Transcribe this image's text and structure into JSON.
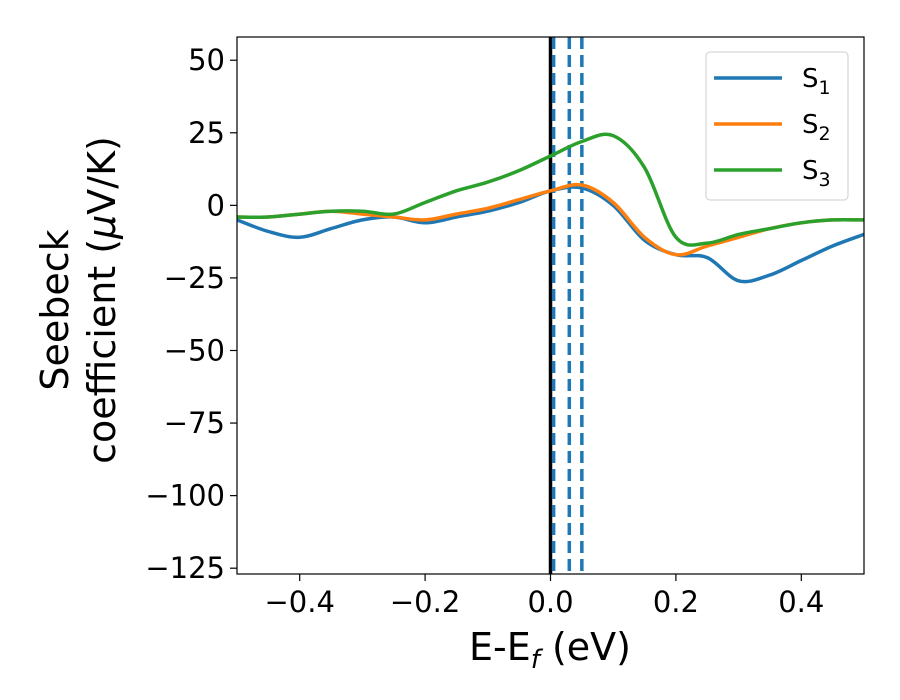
{
  "chart_data": {
    "type": "line",
    "xlabel": "E-E",
    "xlabel_sub": "f",
    "xlabel_unit": " (eV)",
    "ylabel_line1": "Seebeck",
    "ylabel_line2_pre": "coefficient  (",
    "ylabel_mu": "μ",
    "ylabel_line2_post": "V/K)",
    "xlim": [
      -0.5,
      0.5
    ],
    "ylim": [
      -127,
      58
    ],
    "xticks": [
      -0.4,
      -0.2,
      0.0,
      0.2,
      0.4
    ],
    "xtick_labels": [
      "−0.4",
      "−0.2",
      "0.0",
      "0.2",
      "0.4"
    ],
    "yticks": [
      50,
      25,
      0,
      -25,
      -50,
      -75,
      -100,
      -125
    ],
    "ytick_labels": [
      "50",
      "25",
      "0",
      "−25",
      "−50",
      "−75",
      "−100",
      "−125"
    ],
    "legend_position": "top-right",
    "vlines": [
      {
        "x": 0.0,
        "style": "solid",
        "color": "#000000"
      },
      {
        "x": 0.005,
        "style": "dashed",
        "color": "#1f77b4"
      },
      {
        "x": 0.03,
        "style": "dashed",
        "color": "#1f77b4"
      },
      {
        "x": 0.05,
        "style": "dashed",
        "color": "#1f77b4"
      }
    ],
    "series": [
      {
        "name": "S",
        "sub": "1",
        "color": "#1f77b4",
        "x": [
          -0.5,
          -0.45,
          -0.4,
          -0.35,
          -0.3,
          -0.25,
          -0.2,
          -0.15,
          -0.1,
          -0.05,
          0.0,
          0.05,
          0.1,
          0.15,
          0.2,
          0.25,
          0.3,
          0.35,
          0.4,
          0.45,
          0.5
        ],
        "y": [
          -5,
          -9,
          -11,
          -8,
          -5,
          -4,
          -6,
          -4,
          -2,
          1,
          5,
          6,
          0,
          -12,
          -17,
          -18,
          -26,
          -24,
          -19,
          -14,
          -10
        ]
      },
      {
        "name": "S",
        "sub": "2",
        "color": "#ff7f0e",
        "x": [
          -0.5,
          -0.45,
          -0.4,
          -0.35,
          -0.3,
          -0.25,
          -0.2,
          -0.15,
          -0.1,
          -0.05,
          0.0,
          0.05,
          0.1,
          0.15,
          0.2,
          0.25,
          0.3,
          0.35,
          0.4,
          0.45,
          0.5
        ],
        "y": [
          -4,
          -4,
          -3,
          -2,
          -3,
          -4,
          -5,
          -3,
          -1,
          2,
          5,
          7,
          1,
          -11,
          -17,
          -14,
          -11,
          -8,
          -6,
          -5,
          -5
        ]
      },
      {
        "name": "S",
        "sub": "3",
        "color": "#2ca02c",
        "x": [
          -0.5,
          -0.45,
          -0.4,
          -0.35,
          -0.3,
          -0.25,
          -0.2,
          -0.15,
          -0.1,
          -0.05,
          0.0,
          0.05,
          0.1,
          0.15,
          0.2,
          0.25,
          0.3,
          0.35,
          0.4,
          0.45,
          0.5
        ],
        "y": [
          -4,
          -4,
          -3,
          -2,
          -2,
          -3,
          1,
          5,
          8,
          12,
          17,
          22,
          24,
          13,
          -11,
          -13,
          -10,
          -8,
          -6,
          -5,
          -5
        ]
      }
    ]
  }
}
